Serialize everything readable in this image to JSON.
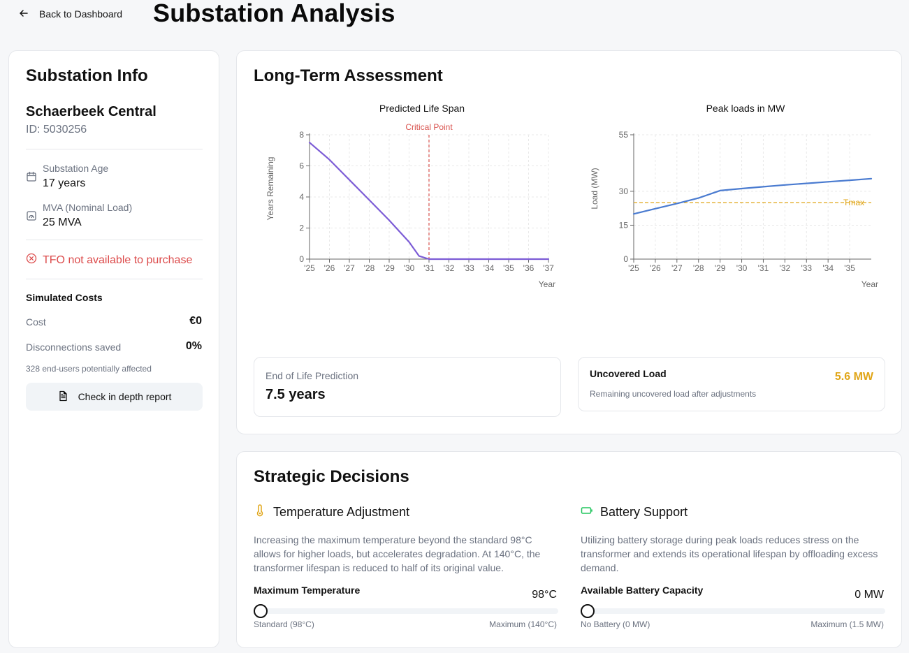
{
  "header": {
    "back_label": "Back to Dashboard",
    "title": "Substation Analysis"
  },
  "info": {
    "title": "Substation Info",
    "name": "Schaerbeek Central",
    "id": "ID: 5030256",
    "age_label": "Substation Age",
    "age_value": "17 years",
    "mva_label": "MVA (Nominal Load)",
    "mva_value": "25 MVA",
    "warning": "TFO not available to purchase",
    "sim_title": "Simulated Costs",
    "cost_label": "Cost",
    "cost_value": "€0",
    "disc_label": "Disconnections saved",
    "disc_value": "0%",
    "affected": "328 end-users potentially affected",
    "report_button": "Check in depth report"
  },
  "long_term": {
    "title": "Long-Term Assessment",
    "eol_label": "End of Life Prediction",
    "eol_value": "7.5 years",
    "uncovered_label": "Uncovered Load",
    "uncovered_sub": "Remaining uncovered load after adjustments",
    "uncovered_value": "5.6 MW"
  },
  "chart_data": [
    {
      "type": "line",
      "title": "Predicted Life Span",
      "xlabel": "Year",
      "ylabel": "Years Remaining",
      "x_ticks": [
        "'25",
        "'26",
        "'27",
        "'28",
        "'29",
        "'30",
        "'31",
        "'32",
        "'33",
        "'34",
        "'35",
        "'36",
        "'37"
      ],
      "y_ticks": [
        0,
        2,
        4,
        6,
        8
      ],
      "xlim": [
        2025,
        2037
      ],
      "ylim": [
        0,
        8
      ],
      "grid": true,
      "line_color": "#7c5cd6",
      "series": [
        {
          "x": [
            2025,
            2026,
            2027,
            2028,
            2029,
            2030,
            2030.5,
            2031,
            2032,
            2033,
            2034,
            2035,
            2036,
            2037
          ],
          "y": [
            7.5,
            6.4,
            5.1,
            3.8,
            2.5,
            1.1,
            0.2,
            0,
            0,
            0,
            0,
            0,
            0,
            0
          ]
        }
      ],
      "annotation": {
        "label": "Critical Point",
        "x": 2031,
        "color": "#d9534f"
      }
    },
    {
      "type": "line",
      "title": "Peak loads in MW",
      "xlabel": "Year",
      "ylabel": "Load (MW)",
      "x_ticks": [
        "'25",
        "'26",
        "'27",
        "'28",
        "'29",
        "'30",
        "'31",
        "'32",
        "'33",
        "'34",
        "'35"
      ],
      "y_ticks": [
        0,
        15,
        30,
        55
      ],
      "xlim": [
        2025,
        2036
      ],
      "ylim": [
        0,
        55
      ],
      "grid": true,
      "line_color": "#4a7bd0",
      "series": [
        {
          "x": [
            2025,
            2026,
            2027,
            2028,
            2029,
            2030,
            2031,
            2032,
            2033,
            2034,
            2035,
            2036
          ],
          "y": [
            20,
            22.3,
            24.6,
            27,
            30.3,
            31.2,
            32,
            32.8,
            33.5,
            34.2,
            34.9,
            35.6
          ]
        }
      ],
      "threshold": {
        "label": "Tmax",
        "y": 25,
        "color": "#e0a517"
      }
    }
  ],
  "strategic": {
    "title": "Strategic Decisions",
    "temp_title": "Temperature Adjustment",
    "temp_desc": "Increasing the maximum temperature beyond the standard 98°C allows for higher loads, but accelerates degradation. At 140°C, the transformer lifespan is reduced to half of its original value.",
    "temp_slider_label": "Maximum Temperature",
    "temp_slider_value": "98°C",
    "temp_slider_fraction": 0,
    "temp_min_note": "Standard (98°C)",
    "temp_max_note": "Maximum (140°C)",
    "battery_title": "Battery Support",
    "battery_desc": "Utilizing battery storage during peak loads reduces stress on the transformer and extends its operational lifespan by offloading excess demand.",
    "battery_slider_label": "Available Battery Capacity",
    "battery_slider_value": "0 MW",
    "battery_slider_fraction": 0,
    "battery_min_note": "No Battery (0 MW)",
    "battery_max_note": "Maximum (1.5 MW)"
  },
  "colors": {
    "warning": "#dc4b4b",
    "temp_icon": "#e0a517",
    "battery_icon": "#22c55e"
  },
  "icons": {
    "back": "arrow-left-icon",
    "age": "calendar-icon",
    "mva": "gauge-icon",
    "warning": "circle-x-icon",
    "report": "file-text-icon",
    "temperature": "thermometer-icon",
    "battery": "battery-icon"
  }
}
